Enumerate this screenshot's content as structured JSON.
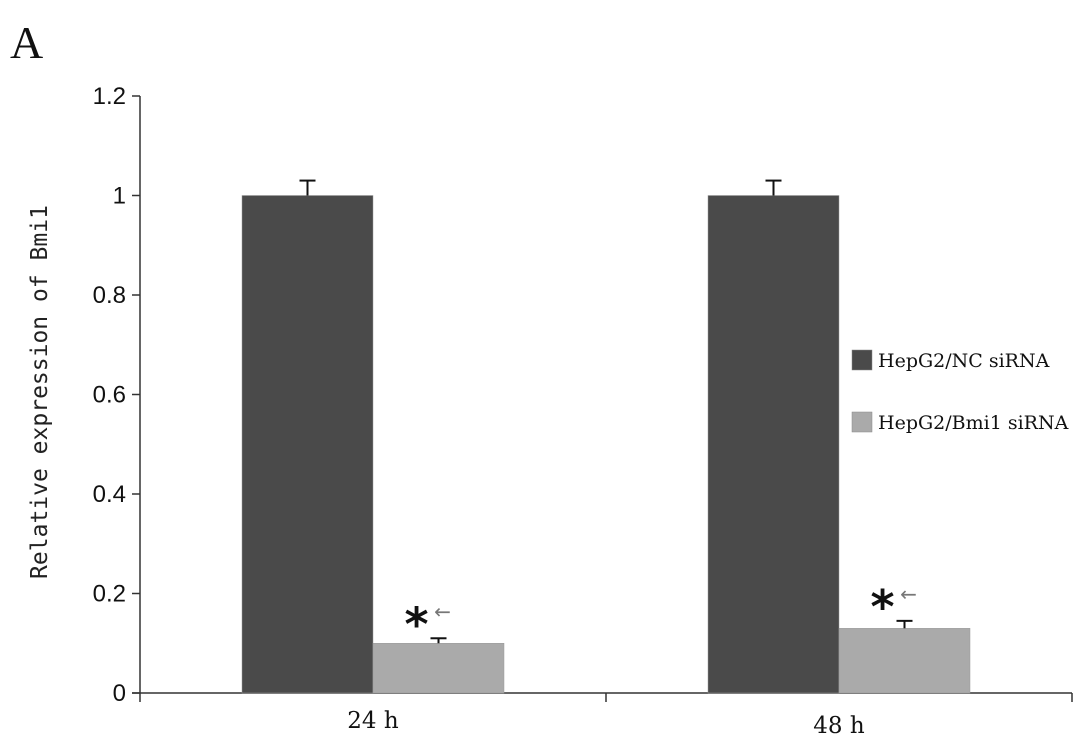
{
  "panel_label": "A",
  "chart_data": {
    "type": "bar",
    "title": "",
    "xlabel": "",
    "ylabel": "Relative expression of Bmi1",
    "ylim": [
      0,
      1.2
    ],
    "yticks": [
      "0",
      "0.2",
      "0.4",
      "0.6",
      "0.8",
      "1",
      "1.2"
    ],
    "categories": [
      "24 h",
      "48 h"
    ],
    "series": [
      {
        "name": "HepG2/NC siRNA",
        "color": "#4a4a4a",
        "values": [
          1.0,
          1.0
        ],
        "errors": [
          0.03,
          0.03
        ]
      },
      {
        "name": "HepG2/Bmi1 siRNA",
        "color": "#aaaaaa",
        "values": [
          0.1,
          0.13
        ],
        "errors": [
          0.01,
          0.015
        ]
      }
    ],
    "grid": false,
    "legend_position": "right",
    "annotations": [
      {
        "category": "24 h",
        "series": "HepG2/Bmi1 siRNA",
        "text": "*",
        "arrow": "←"
      },
      {
        "category": "48 h",
        "series": "HepG2/Bmi1 siRNA",
        "text": "*",
        "arrow": "←"
      }
    ]
  }
}
